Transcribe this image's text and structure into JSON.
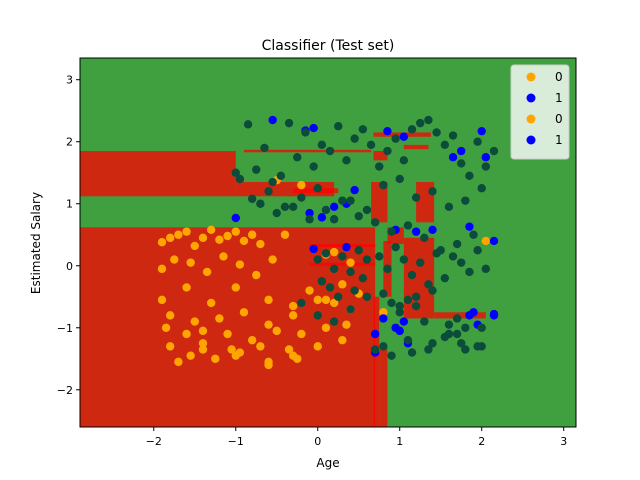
{
  "chart_data": {
    "type": "scatter",
    "title": "Classifier (Test set)",
    "xlabel": "Age",
    "ylabel": "Estimated Salary",
    "xlim": [
      -2.9,
      3.15
    ],
    "ylim": [
      -2.6,
      3.35
    ],
    "xticks": [
      -2,
      -1,
      0,
      1,
      2,
      3
    ],
    "yticks": [
      -2,
      -1,
      0,
      1,
      2,
      3
    ],
    "grid": false,
    "legend": {
      "location": "top-right",
      "entries": [
        {
          "label": "0",
          "color": "#ffa500"
        },
        {
          "label": "1",
          "color": "#0000ff"
        },
        {
          "label": "0",
          "color": "#ffa500"
        },
        {
          "label": "1",
          "color": "#0000ff"
        }
      ]
    },
    "region_colors": {
      "class_0": "#ff0000",
      "class_1": "#008000"
    },
    "region_alpha": 0.75,
    "regions_class_0": [
      [
        -2.9,
        -2.6,
        0.7,
        0.62
      ],
      [
        -2.9,
        1.12,
        -1.0,
        1.85
      ],
      [
        -1.0,
        1.12,
        -0.9,
        1.38
      ],
      [
        -0.9,
        1.12,
        0.2,
        1.35
      ],
      [
        -0.9,
        1.83,
        0.65,
        1.87
      ],
      [
        -0.3,
        1.17,
        0.25,
        1.25
      ],
      [
        0.68,
        1.7,
        0.85,
        1.85
      ],
      [
        0.68,
        2.08,
        1.38,
        2.15
      ],
      [
        0.65,
        0.7,
        0.85,
        1.35
      ],
      [
        1.2,
        0.7,
        1.42,
        1.35
      ],
      [
        1.05,
        1.88,
        1.35,
        1.95
      ],
      [
        0.85,
        0.35,
        1.05,
        0.62
      ],
      [
        1.05,
        -0.85,
        1.42,
        0.45
      ],
      [
        1.42,
        -0.85,
        2.05,
        -0.75
      ],
      [
        0.68,
        -2.6,
        0.75,
        -0.5
      ],
      [
        0.75,
        -2.6,
        0.85,
        -1.35
      ],
      [
        0.8,
        -0.5,
        0.9,
        0.4
      ],
      [
        -0.1,
        0.0,
        0.7,
        0.05
      ],
      [
        -0.1,
        0.3,
        0.7,
        0.35
      ]
    ],
    "series": [
      {
        "name": "0",
        "color": "#ffa500",
        "x": [
          -1.9,
          -1.8,
          -1.7,
          -1.6,
          -1.5,
          -1.4,
          -1.3,
          -1.2,
          -1.1,
          -1.0,
          -0.9,
          -0.8,
          -0.7,
          -1.9,
          -1.75,
          -1.55,
          -1.35,
          -1.15,
          -0.95,
          -0.75,
          -0.55,
          -0.4,
          -1.9,
          -1.6,
          -1.3,
          -1.0,
          -0.6,
          -0.3,
          -0.1,
          0.1,
          0.3,
          0.5,
          -1.8,
          -1.5,
          -1.2,
          -0.9,
          -0.6,
          -0.3,
          0.0,
          0.2,
          0.4,
          -1.85,
          -1.6,
          -1.4,
          -1.1,
          -0.8,
          -0.5,
          -0.2,
          0.1,
          0.35,
          -1.8,
          -1.4,
          -1.05,
          -0.7,
          -0.3,
          0.0,
          0.3,
          -1.55,
          -1.25,
          -0.95,
          -0.6,
          -0.25,
          -1.7,
          -1.4,
          -1.0,
          -0.6,
          -0.35,
          -0.5,
          -0.2,
          0.1,
          0.4,
          0.2,
          0.8,
          2.05
        ],
        "y": [
          0.38,
          0.45,
          0.5,
          0.55,
          0.32,
          0.45,
          0.58,
          0.42,
          0.48,
          0.55,
          0.4,
          0.5,
          0.35,
          -0.05,
          0.1,
          0.05,
          -0.1,
          0.15,
          0.02,
          -0.15,
          0.1,
          0.5,
          -0.55,
          -0.35,
          -0.6,
          -0.35,
          -0.55,
          -0.65,
          -0.4,
          -0.55,
          -0.3,
          -0.45,
          -0.8,
          -0.9,
          -0.85,
          -0.75,
          -0.95,
          -0.8,
          -0.55,
          -0.6,
          -0.7,
          -1.0,
          -1.1,
          -1.05,
          -1.1,
          -1.2,
          -1.05,
          -1.1,
          -1.0,
          -0.95,
          -1.3,
          -1.25,
          -1.35,
          -1.3,
          -1.45,
          -1.3,
          -1.2,
          -1.45,
          -1.5,
          -1.4,
          -1.55,
          -1.5,
          -1.55,
          -1.35,
          -1.45,
          -1.6,
          -1.35,
          1.38,
          1.3,
          0.18,
          0.05,
          0.22,
          -0.75,
          0.4
        ]
      },
      {
        "name": "1",
        "color": "#0000ff",
        "x": [
          -1.0,
          -0.55,
          -0.15,
          -0.05,
          -0.1,
          -0.05,
          0.05,
          0.2,
          0.35,
          0.45,
          0.85,
          0.95,
          1.05,
          1.2,
          1.4,
          1.65,
          1.75,
          1.9,
          2.0,
          2.05,
          2.15,
          1.85,
          2.15,
          0.7,
          0.8,
          0.95,
          1.0,
          1.05,
          0.7,
          1.1,
          1.85,
          1.95,
          2.15,
          0.35
        ],
        "y": [
          0.77,
          2.35,
          2.18,
          2.22,
          0.85,
          0.27,
          0.78,
          0.95,
          1.0,
          1.22,
          2.17,
          0.58,
          2.08,
          0.55,
          0.58,
          1.75,
          1.85,
          -0.75,
          2.17,
          1.75,
          0.4,
          0.63,
          -0.8,
          -1.1,
          -0.85,
          -1.0,
          -1.05,
          -0.9,
          -1.4,
          -1.25,
          -0.8,
          -0.95,
          -0.78,
          0.3
        ]
      },
      {
        "name": "1",
        "color": "#0b4c3a",
        "x": [
          -1.0,
          -0.95,
          -0.85,
          -0.75,
          -0.65,
          -0.55,
          -0.45,
          -0.35,
          -0.25,
          -0.15,
          -0.05,
          0.05,
          0.15,
          0.25,
          0.35,
          0.45,
          0.55,
          0.65,
          0.75,
          0.85,
          0.95,
          1.05,
          1.15,
          1.25,
          1.35,
          1.45,
          1.55,
          1.65,
          1.75,
          1.85,
          1.95,
          2.05,
          2.15,
          -0.8,
          -0.6,
          -0.4,
          -0.2,
          0.0,
          0.2,
          0.4,
          0.6,
          0.8,
          1.0,
          1.2,
          1.4,
          1.6,
          1.8,
          2.0,
          -0.7,
          -0.5,
          -0.3,
          -0.1,
          0.1,
          0.3,
          0.5,
          0.7,
          0.9,
          1.1,
          1.3,
          1.5,
          1.7,
          1.9,
          0.75,
          0.85,
          0.95,
          1.05,
          1.15,
          1.25,
          1.35,
          1.45,
          1.55,
          1.65,
          1.75,
          1.85,
          1.95,
          2.05,
          0.0,
          0.1,
          0.2,
          0.3,
          0.4,
          0.5,
          0.6,
          0.05,
          0.15,
          0.25,
          0.45,
          0.55,
          0.9,
          1.0,
          1.1,
          1.2,
          1.3,
          1.6,
          1.7,
          1.8,
          0.8,
          1.1,
          1.4,
          1.7,
          2.0,
          0.7,
          0.9,
          1.15,
          1.35,
          1.55,
          1.75,
          1.95,
          -0.2,
          0.0,
          0.2,
          0.4,
          0.6,
          0.8,
          1.0,
          1.2,
          1.4,
          1.6,
          1.8,
          2.0
        ],
        "y": [
          1.5,
          1.4,
          2.28,
          1.55,
          1.9,
          1.35,
          1.45,
          2.3,
          1.75,
          2.15,
          1.6,
          1.95,
          1.85,
          2.25,
          1.7,
          2.05,
          2.2,
          1.95,
          1.6,
          1.85,
          2.05,
          1.7,
          2.2,
          2.3,
          2.35,
          2.15,
          1.95,
          2.1,
          1.65,
          1.45,
          2.0,
          1.6,
          1.85,
          1.08,
          1.2,
          0.95,
          1.1,
          1.25,
          0.75,
          1.05,
          0.9,
          1.3,
          1.4,
          1.1,
          1.2,
          0.95,
          1.05,
          1.25,
          1.0,
          0.85,
          0.95,
          0.75,
          0.9,
          1.05,
          0.8,
          0.7,
          0.55,
          0.65,
          0.45,
          0.25,
          0.35,
          0.5,
          0.15,
          -0.05,
          0.3,
          0.1,
          -0.15,
          0.05,
          -0.3,
          0.2,
          -0.2,
          0.15,
          0.05,
          -0.1,
          0.25,
          -0.05,
          0.1,
          0.2,
          -0.05,
          0.15,
          -0.1,
          0.25,
          0.1,
          -0.25,
          -0.35,
          -0.5,
          -0.4,
          -0.2,
          -0.6,
          -0.75,
          -0.55,
          -0.65,
          -0.9,
          -0.95,
          -0.85,
          -1.0,
          -1.3,
          -1.2,
          -1.25,
          -1.1,
          -1.3,
          -1.35,
          -1.45,
          -1.4,
          -1.35,
          -1.15,
          -1.25,
          -1.3,
          -0.6,
          -0.8,
          -0.9,
          -0.7,
          -0.5,
          -0.45,
          -0.65,
          -0.5,
          -0.4,
          -1.1,
          -1.35,
          -1.0
        ]
      }
    ]
  }
}
